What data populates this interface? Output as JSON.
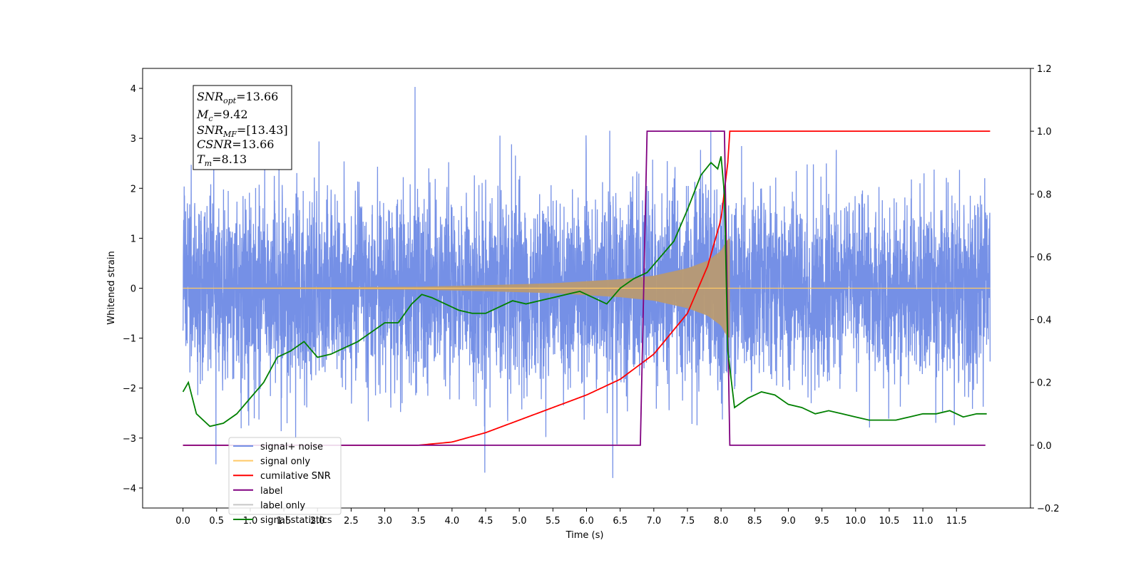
{
  "chart_data": {
    "type": "line",
    "title": "",
    "xlabel": "Time (s)",
    "ylabel": "Whitened strain",
    "xlim": [
      -0.6,
      12.6
    ],
    "ylim": [
      -4.4,
      4.4
    ],
    "y2lim": [
      -0.2,
      1.2
    ],
    "x_ticks": [
      "0.0",
      "0.5",
      "1.0",
      "1.5",
      "2.0",
      "2.5",
      "3.0",
      "3.5",
      "4.0",
      "4.5",
      "5.0",
      "5.5",
      "6.0",
      "6.5",
      "7.0",
      "7.5",
      "8.0",
      "8.5",
      "9.0",
      "9.5",
      "10.0",
      "10.5",
      "11.0",
      "11.5"
    ],
    "y_ticks": [
      "4",
      "3",
      "2",
      "1",
      "0",
      "−1",
      "−2",
      "−3",
      "−4"
    ],
    "y2_ticks": [
      "1.2",
      "1.0",
      "0.8",
      "0.6",
      "0.4",
      "0.2",
      "0.0",
      "−0.2"
    ],
    "grid": false,
    "legend_position": "lower-left",
    "legend": [
      {
        "label": "signal+ noise",
        "color": "#7590e6"
      },
      {
        "label": "signal only",
        "color": "#ffc966"
      },
      {
        "label": "cumilative SNR",
        "color": "#ff0000"
      },
      {
        "label": "label",
        "color": "#800080"
      },
      {
        "label": "label only",
        "color": "#c8c8c8"
      },
      {
        "label": "signal statistics",
        "color": "#008000"
      }
    ],
    "annotation": {
      "SNR_opt": "13.66",
      "M_c": "9.42",
      "SNR_MF": "[13.43]",
      "CSNR": "13.66",
      "T_m": "8.13"
    },
    "series": [
      {
        "name": "signal+ noise",
        "axis": "left",
        "description_values": "noise band, |amplitude| envelope",
        "x_range": [
          0.0,
          12.0
        ],
        "envelope": 1.6,
        "max_spike": 4.1,
        "min_spike": -3.8
      },
      {
        "name": "signal only",
        "axis": "left",
        "x": [
          0,
          3.5,
          4.5,
          5.5,
          6.5,
          7.0,
          7.5,
          7.8,
          8.0,
          8.08,
          8.13
        ],
        "amplitude": [
          0.005,
          0.03,
          0.06,
          0.1,
          0.18,
          0.25,
          0.4,
          0.55,
          0.75,
          0.95,
          1.0
        ]
      },
      {
        "name": "cumilative SNR",
        "axis": "right",
        "x": [
          0,
          3.5,
          4.0,
          4.5,
          5.0,
          5.5,
          6.0,
          6.5,
          7.0,
          7.5,
          7.8,
          8.0,
          8.1,
          8.13,
          12.0
        ],
        "y": [
          0.0,
          0.0,
          0.01,
          0.04,
          0.08,
          0.12,
          0.16,
          0.21,
          0.29,
          0.42,
          0.57,
          0.72,
          0.9,
          1.0,
          1.0
        ]
      },
      {
        "name": "label",
        "axis": "right",
        "x": [
          0,
          6.8,
          6.9,
          8.05,
          8.13,
          11.93
        ],
        "y": [
          0,
          0,
          1,
          1,
          0,
          0
        ]
      },
      {
        "name": "signal statistics",
        "axis": "right",
        "x": [
          0.0,
          0.08,
          0.2,
          0.4,
          0.6,
          0.8,
          1.0,
          1.2,
          1.4,
          1.6,
          1.8,
          2.0,
          2.2,
          2.4,
          2.6,
          2.8,
          3.0,
          3.2,
          3.4,
          3.55,
          3.7,
          3.9,
          4.1,
          4.3,
          4.5,
          4.7,
          4.9,
          5.1,
          5.3,
          5.5,
          5.7,
          5.9,
          6.1,
          6.3,
          6.5,
          6.7,
          6.9,
          7.1,
          7.3,
          7.5,
          7.7,
          7.85,
          7.95,
          8.0,
          8.05,
          8.1,
          8.2,
          8.4,
          8.6,
          8.8,
          9.0,
          9.2,
          9.4,
          9.6,
          9.8,
          10.0,
          10.2,
          10.4,
          10.6,
          10.8,
          11.0,
          11.2,
          11.4,
          11.6,
          11.8,
          11.95
        ],
        "y": [
          0.17,
          0.2,
          0.1,
          0.06,
          0.07,
          0.1,
          0.15,
          0.2,
          0.28,
          0.3,
          0.33,
          0.28,
          0.29,
          0.31,
          0.33,
          0.36,
          0.39,
          0.39,
          0.45,
          0.48,
          0.47,
          0.45,
          0.43,
          0.42,
          0.42,
          0.44,
          0.46,
          0.45,
          0.46,
          0.47,
          0.48,
          0.49,
          0.47,
          0.45,
          0.5,
          0.53,
          0.55,
          0.6,
          0.65,
          0.75,
          0.86,
          0.9,
          0.88,
          0.92,
          0.8,
          0.3,
          0.12,
          0.15,
          0.17,
          0.16,
          0.13,
          0.12,
          0.1,
          0.11,
          0.1,
          0.09,
          0.08,
          0.08,
          0.08,
          0.09,
          0.1,
          0.1,
          0.11,
          0.09,
          0.1,
          0.1
        ]
      }
    ]
  }
}
